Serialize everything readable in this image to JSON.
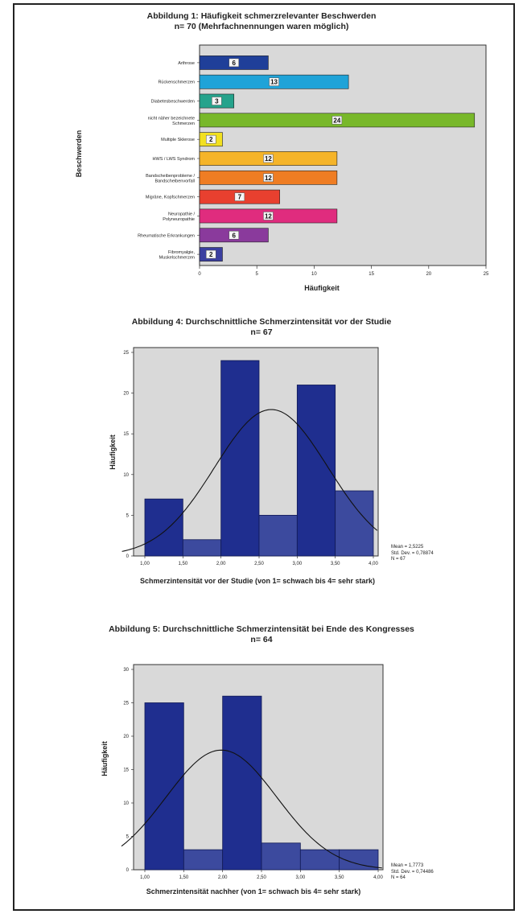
{
  "chart_data": [
    {
      "type": "bar",
      "orientation": "horizontal",
      "title": "Abbildung 1: Häufigkeit schmerzrelevanter Beschwerden",
      "subtitle": "n= 70 (Mehrfachnennungen waren möglich)",
      "xlabel": "Häufigkeit",
      "ylabel": "Beschwerden",
      "xlim": [
        0,
        25
      ],
      "xticks": [
        0,
        5,
        10,
        15,
        20,
        25
      ],
      "grid": false,
      "categories": [
        "Arthrose",
        "Rückenschmerzen",
        "Diabetesbeschwerden",
        "nicht näher bezeichnete Schmerzen",
        "Multiple Sklerose",
        "HWS / LWS Syndrom",
        "Bandscheibenprobleme / Bandscheibenvorfall",
        "Migräne, Kopfschmerzen",
        "Neuropathie / Polyneuropathie",
        "Rheumatische Erkrankungen",
        "Fibromyalgie, Muskelschmerzen"
      ],
      "values": [
        6,
        13,
        3,
        24,
        2,
        12,
        12,
        7,
        12,
        6,
        2
      ],
      "colors": [
        "#1f3f99",
        "#1fa3d8",
        "#25a38c",
        "#78b82a",
        "#f2e020",
        "#f5b429",
        "#ef7d23",
        "#e8402f",
        "#e02c7e",
        "#8a3a9c",
        "#3b3fa0"
      ]
    },
    {
      "type": "bar",
      "subtype": "histogram",
      "title": "Abbildung 4: Durchschnittliche Schmerzintensität vor der Studie",
      "subtitle": "n= 67",
      "xlabel": "Schmerzintensität vor der Studie (von 1= schwach bis 4= sehr stark)",
      "ylabel": "Häufigkeit",
      "x_range": [
        1.0,
        4.0
      ],
      "xticks": [
        "1,00",
        "1,50",
        "2,00",
        "2,50",
        "3,00",
        "3,50",
        "4,00"
      ],
      "ylim": [
        0,
        25
      ],
      "yticks": [
        0,
        5,
        10,
        15,
        20,
        25
      ],
      "bins": [
        [
          1.0,
          1.5
        ],
        [
          1.5,
          2.0
        ],
        [
          2.0,
          2.5
        ],
        [
          2.5,
          3.0
        ],
        [
          3.0,
          3.5
        ],
        [
          3.5,
          4.0
        ]
      ],
      "values": [
        7,
        2,
        24,
        5,
        21,
        8
      ],
      "normal_curve": true,
      "stats": [
        "Mean = 2,5225",
        "Std. Dev. = 0,78874",
        "N = 67"
      ]
    },
    {
      "type": "bar",
      "subtype": "histogram",
      "title": "Abbildung 5: Durchschnittliche Schmerzintensität bei Ende des Kongresses",
      "subtitle": "n= 64",
      "xlabel": "Schmerzintensität nachher (von 1= schwach bis 4= sehr stark)",
      "ylabel": "Häufigkeit",
      "x_range": [
        1.0,
        4.0
      ],
      "xticks": [
        "1,00",
        "1,50",
        "2,00",
        "2,50",
        "3,00",
        "3,50",
        "4,00"
      ],
      "ylim": [
        0,
        30
      ],
      "yticks": [
        0,
        5,
        10,
        15,
        20,
        25,
        30
      ],
      "bins": [
        [
          1.0,
          1.5
        ],
        [
          1.5,
          2.0
        ],
        [
          2.0,
          2.5
        ],
        [
          2.5,
          3.0
        ],
        [
          3.0,
          3.5
        ],
        [
          3.5,
          4.0
        ]
      ],
      "values": [
        25,
        3,
        26,
        4,
        3,
        3
      ],
      "normal_curve": true,
      "stats": [
        "Mean = 1,7773",
        "Std. Dev. = 0,74486",
        "N = 64"
      ]
    }
  ],
  "style": {
    "plot_bg": "#d9d9d9",
    "hist_dark": "#1f2e8f",
    "hist_light": "#3c4a9e",
    "curve": "#111111"
  }
}
